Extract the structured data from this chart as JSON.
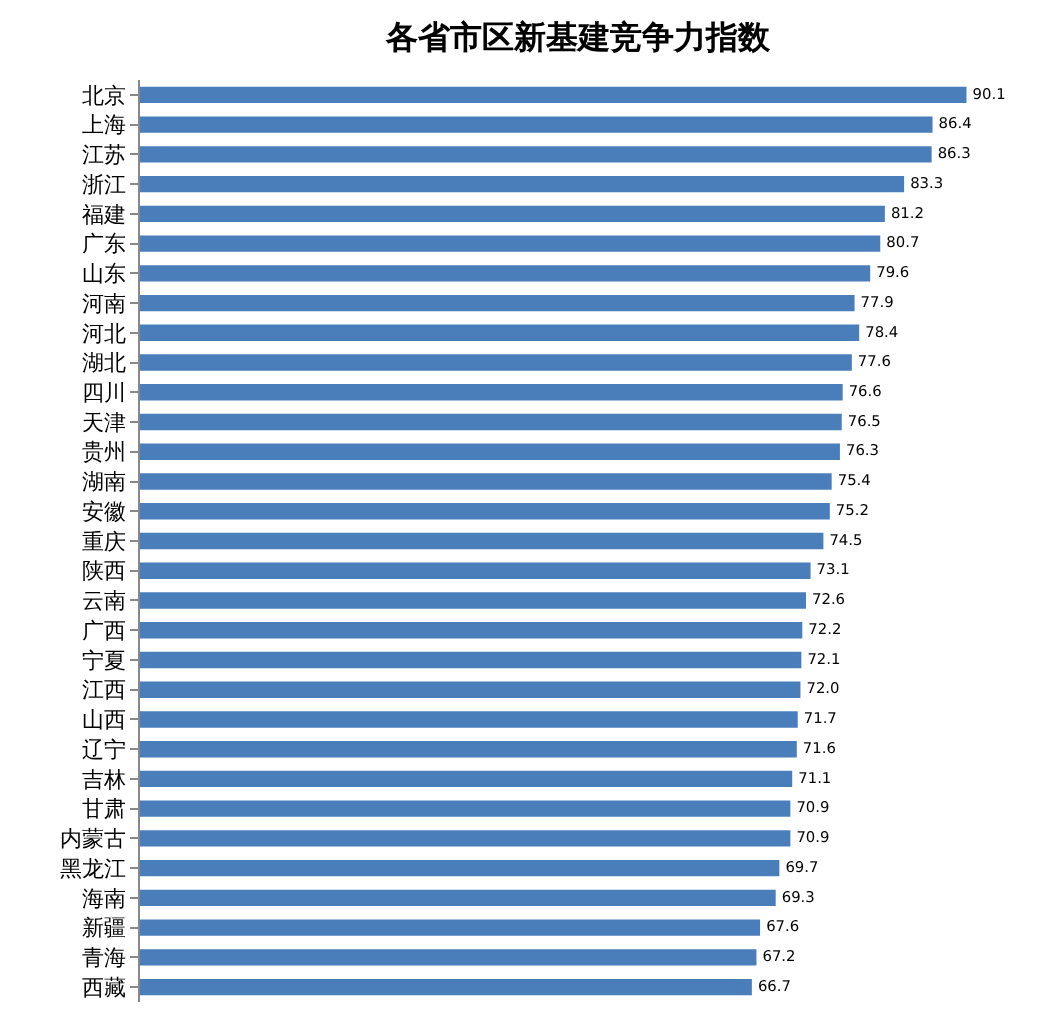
{
  "chart_data": {
    "type": "bar",
    "orientation": "horizontal",
    "title": "各省市区新基建竞争力指数",
    "categories": [
      "北京",
      "上海",
      "江苏",
      "浙江",
      "福建",
      "广东",
      "山东",
      "河南",
      "河北",
      "湖北",
      "四川",
      "天津",
      "贵州",
      "湖南",
      "安徽",
      "重庆",
      "陕西",
      "云南",
      "广西",
      "宁夏",
      "江西",
      "山西",
      "辽宁",
      "吉林",
      "甘肃",
      "内蒙古",
      "黑龙江",
      "海南",
      "新疆",
      "青海",
      "西藏"
    ],
    "values": [
      90.1,
      86.4,
      86.3,
      83.3,
      81.2,
      80.7,
      79.6,
      77.9,
      78.4,
      77.6,
      76.6,
      76.5,
      76.3,
      75.4,
      75.2,
      74.5,
      73.1,
      72.6,
      72.2,
      72.1,
      72.0,
      71.7,
      71.6,
      71.1,
      70.9,
      70.9,
      69.7,
      69.3,
      67.6,
      67.2,
      66.7
    ],
    "value_labels": [
      "90.1",
      "86.4",
      "86.3",
      "83.3",
      "81.2",
      "80.7",
      "79.6",
      "77.9",
      "78.4",
      "77.6",
      "76.6",
      "76.5",
      "76.3",
      "75.4",
      "75.2",
      "74.5",
      "73.1",
      "72.6",
      "72.2",
      "72.1",
      "72.0",
      "71.7",
      "71.6",
      "71.1",
      "70.9",
      "70.9",
      "69.7",
      "69.3",
      "67.6",
      "67.2",
      "66.7"
    ],
    "color": "#4a7ebb",
    "tick_labels": "y"
  }
}
